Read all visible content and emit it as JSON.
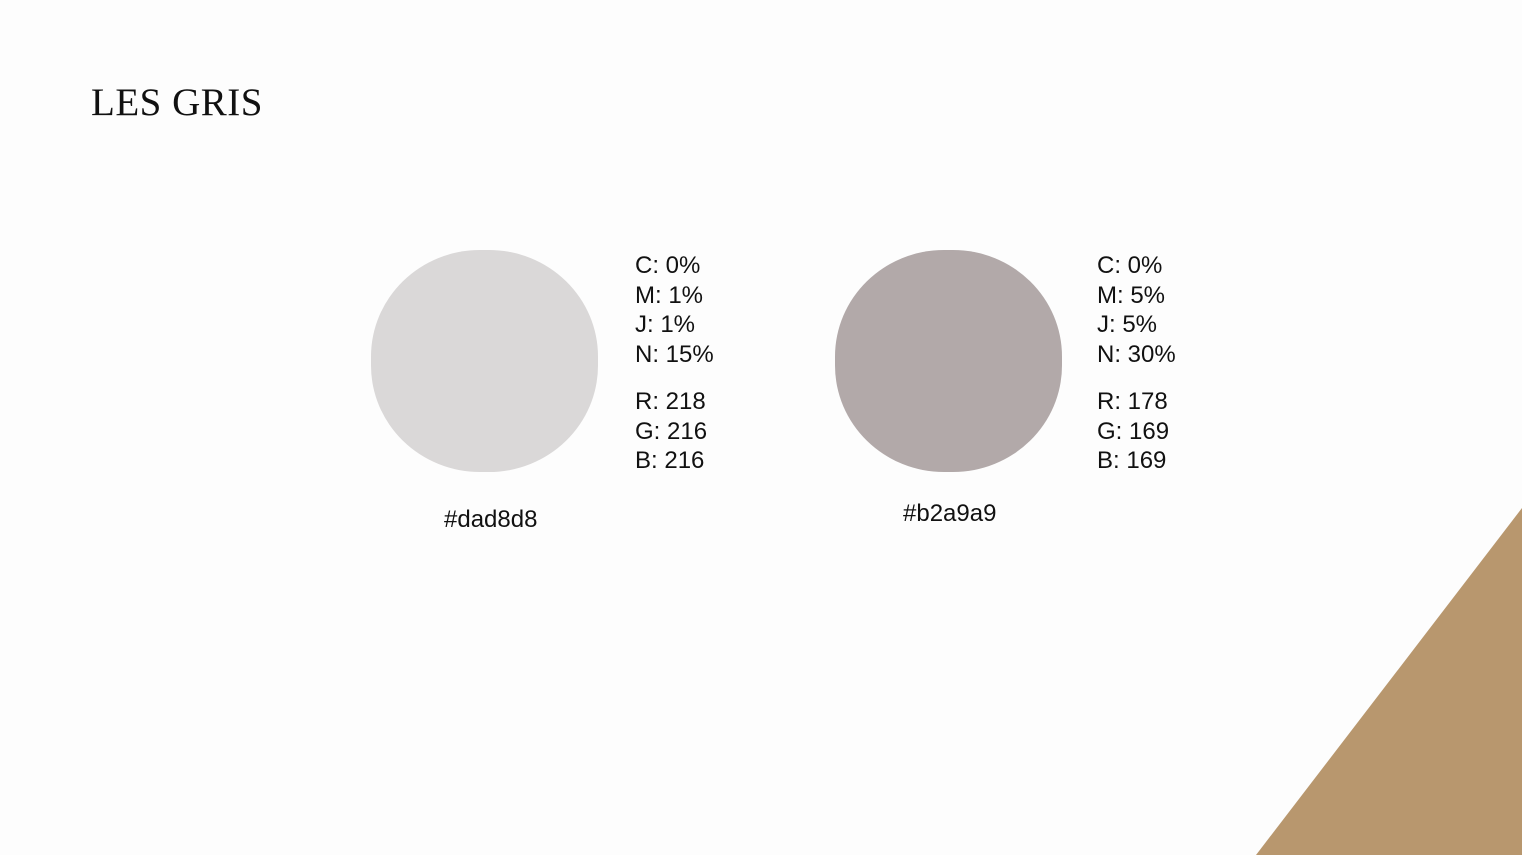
{
  "title": "LES GRIS",
  "colors": {
    "background": "#fdfdfd",
    "accent": "#b8976e",
    "text": "#111111"
  },
  "swatches": [
    {
      "color": "#dad8d8",
      "hex_label": "#dad8d8",
      "cmyk": [
        "C: 0%",
        "M: 1%",
        "J: 1%",
        "N: 15%"
      ],
      "rgb": [
        "R: 218",
        "G: 216",
        "B: 216"
      ]
    },
    {
      "color": "#b2a9a9",
      "hex_label": "#b2a9a9",
      "cmyk": [
        "C: 0%",
        "M: 5%",
        "J: 5%",
        "N: 30%"
      ],
      "rgb": [
        "R: 178",
        "G: 169",
        "B: 169"
      ]
    }
  ]
}
